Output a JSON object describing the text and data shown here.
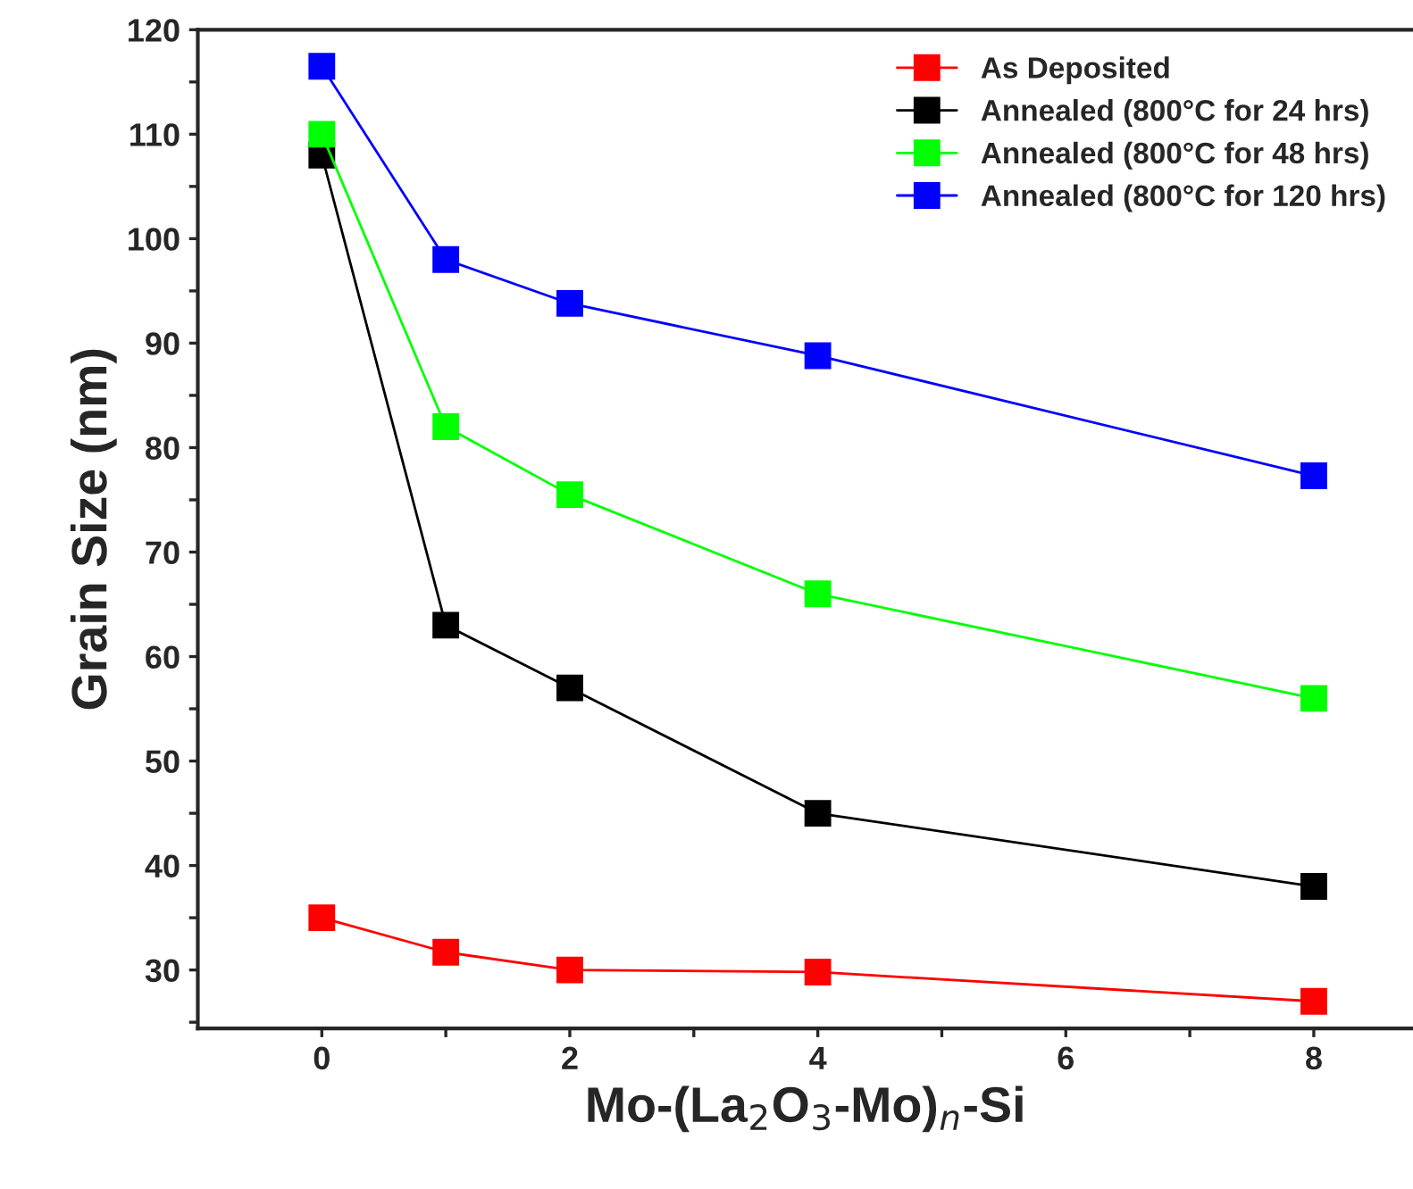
{
  "chart_data": {
    "type": "line",
    "xlabel": "Mo-(La$_{2}$O$_{3}$-Mo)$_{n}$-Si",
    "ylabel": "Grain Size (nm)",
    "x": [
      0,
      1,
      2,
      4,
      8
    ],
    "series": [
      {
        "name": "As Deposited",
        "color": "#ff0000",
        "values": [
          35,
          31.7,
          30,
          29.8,
          27
        ]
      },
      {
        "name": "Annealed (800°C for 24 hrs)",
        "color": "#000000",
        "values": [
          108,
          63,
          57,
          45,
          38
        ]
      },
      {
        "name": "Annealed (800°C for 48 hrs)",
        "color": "#00ff00",
        "values": [
          110,
          82,
          75.5,
          66,
          56
        ]
      },
      {
        "name": "Annealed (800°C for 120 hrs)",
        "color": "#0000ff",
        "values": [
          116.5,
          98,
          93.8,
          88.8,
          77.3
        ]
      }
    ],
    "xlim": [
      -1,
      8.8
    ],
    "ylim": [
      24.4,
      120
    ],
    "xticks": [
      0,
      {
        "value": 1,
        "label": null
      },
      2,
      {
        "value": 3,
        "label": null
      },
      4,
      {
        "value": 5,
        "label": null
      },
      6,
      {
        "value": 7,
        "label": null
      },
      8
    ],
    "yticks": [
      {
        "value": 25,
        "label": null
      },
      30,
      {
        "value": 35,
        "label": null
      },
      40,
      {
        "value": 45,
        "label": null
      },
      50,
      {
        "value": 55,
        "label": null
      },
      60,
      {
        "value": 65,
        "label": null
      },
      70,
      {
        "value": 75,
        "label": null
      },
      80,
      {
        "value": 85,
        "label": null
      },
      90,
      {
        "value": 95,
        "label": null
      },
      100,
      {
        "value": 105,
        "label": null
      },
      110,
      {
        "value": 115,
        "label": null
      },
      120
    ],
    "marker": "square",
    "line_style": "solid",
    "grid": false,
    "legend": "top right"
  }
}
